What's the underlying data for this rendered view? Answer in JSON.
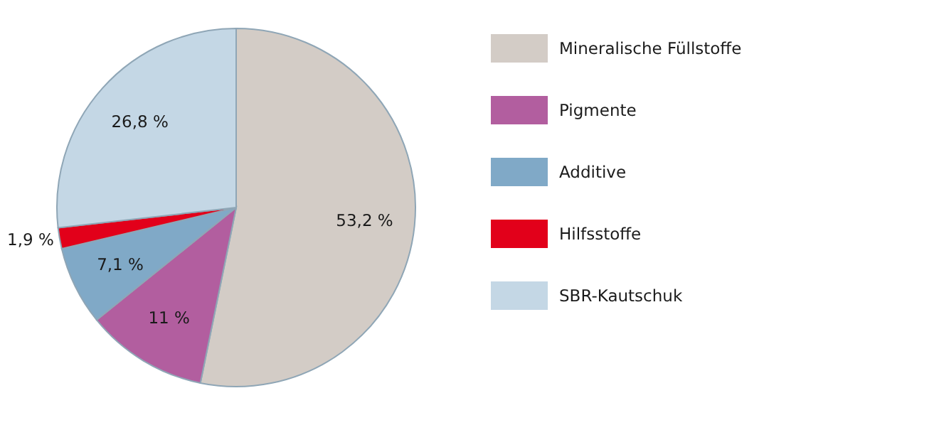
{
  "chart_data": {
    "type": "pie",
    "categories": [
      "Mineralische Füllstoffe",
      "Pigmente",
      "Additive",
      "Hilfsstoffe",
      "SBR-Kautschuk"
    ],
    "values": [
      53.2,
      11,
      7.1,
      1.9,
      26.8
    ],
    "colors": [
      "#d3ccc6",
      "#b25e9f",
      "#80a9c7",
      "#e2001a",
      "#c4d7e5"
    ],
    "value_labels": [
      "53,2 %",
      "11 %",
      "7,1 %",
      "1,9 %",
      "26,8 %"
    ],
    "legend": "right"
  }
}
